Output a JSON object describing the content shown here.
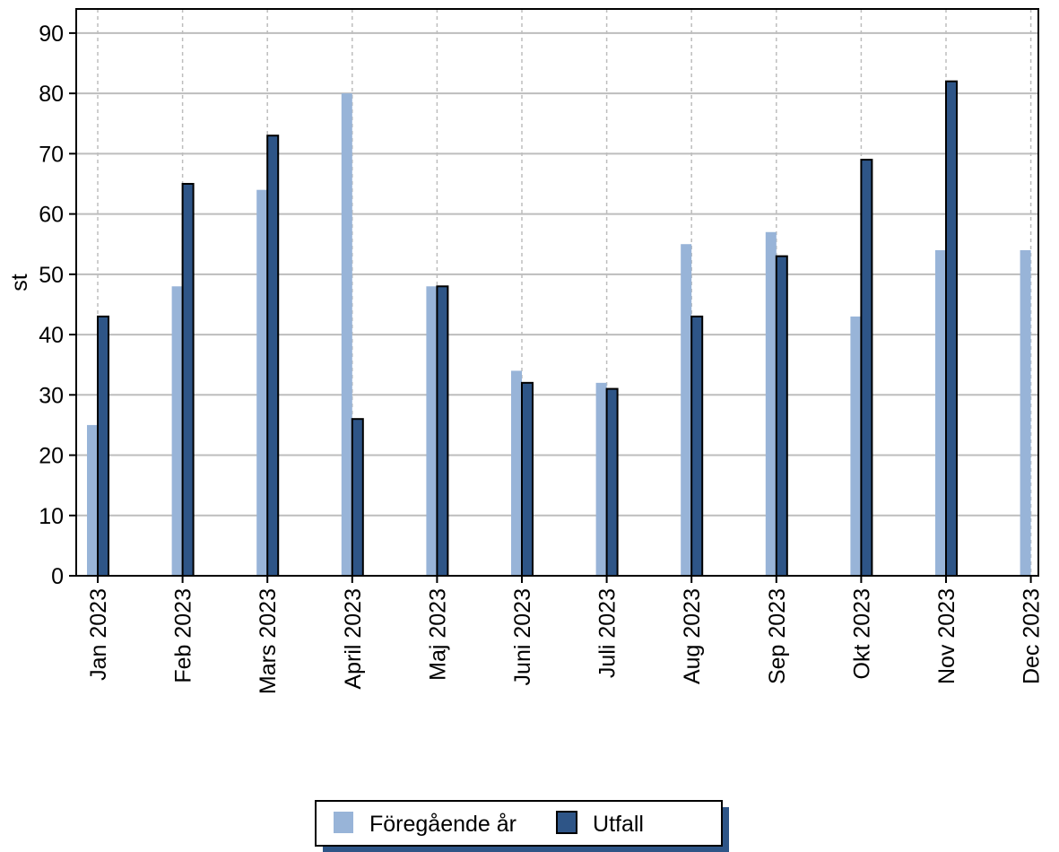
{
  "chart_data": {
    "type": "bar",
    "ylabel": "st",
    "categories": [
      "Jan 2023",
      "Feb 2023",
      "Mars 2023",
      "April 2023",
      "Maj 2023",
      "Juni 2023",
      "Juli 2023",
      "Aug 2023",
      "Sep 2023",
      "Okt 2023",
      "Nov 2023",
      "Dec 2023"
    ],
    "series": [
      {
        "name": "Föregående år",
        "color": "#98b4d8",
        "values": [
          25,
          48,
          64,
          80,
          48,
          34,
          32,
          55,
          57,
          43,
          54,
          54
        ]
      },
      {
        "name": "Utfall",
        "color": "#2e5587",
        "values": [
          43,
          65,
          73,
          26,
          48,
          32,
          31,
          43,
          53,
          69,
          82,
          null
        ]
      }
    ],
    "ylim": [
      0,
      94
    ],
    "yticks": [
      0,
      10,
      20,
      30,
      40,
      50,
      60,
      70,
      80,
      90
    ],
    "grid": true,
    "legend": "bottom"
  }
}
